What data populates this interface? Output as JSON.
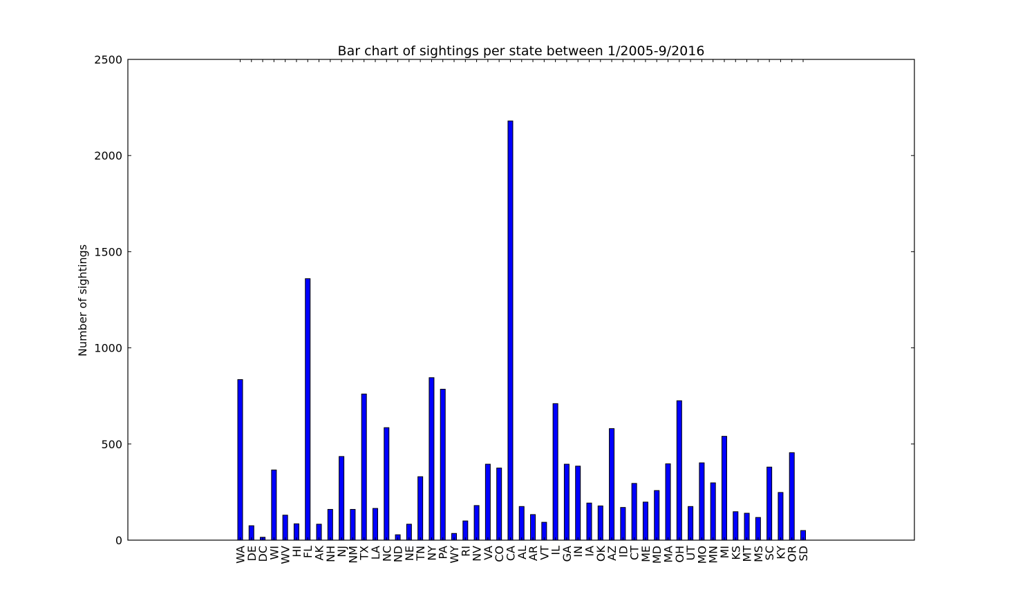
{
  "chart_data": {
    "type": "bar",
    "title": "Bar chart of sightings per state between 1/2005-9/2016",
    "xlabel": "",
    "ylabel": "Number of sightings",
    "ylim": [
      0,
      2500
    ],
    "yticks": [
      0,
      500,
      1000,
      1500,
      2000,
      2500
    ],
    "grid": false,
    "categories": [
      "WA",
      "DE",
      "DC",
      "WI",
      "WV",
      "HI",
      "FL",
      "AK",
      "NH",
      "NJ",
      "NM",
      "TX",
      "LA",
      "NC",
      "ND",
      "NE",
      "TN",
      "NY",
      "PA",
      "WY",
      "RI",
      "NV",
      "VA",
      "CO",
      "CA",
      "AL",
      "AR",
      "VT",
      "IL",
      "GA",
      "IN",
      "IA",
      "OK",
      "AZ",
      "ID",
      "CT",
      "ME",
      "MD",
      "MA",
      "OH",
      "UT",
      "MO",
      "MN",
      "MI",
      "KS",
      "MT",
      "MS",
      "SC",
      "KY",
      "OR",
      "SD"
    ],
    "values": [
      835,
      75,
      15,
      365,
      130,
      85,
      1360,
      83,
      160,
      435,
      160,
      760,
      165,
      585,
      28,
      83,
      330,
      845,
      785,
      35,
      100,
      180,
      395,
      375,
      2180,
      175,
      133,
      93,
      710,
      395,
      385,
      193,
      178,
      580,
      170,
      295,
      198,
      258,
      397,
      725,
      175,
      402,
      298,
      540,
      148,
      140,
      118,
      380,
      248,
      455,
      50
    ],
    "colors": {
      "bar_fill": "#0000ff",
      "bar_stroke": "#000000",
      "axes": "#000000"
    }
  }
}
